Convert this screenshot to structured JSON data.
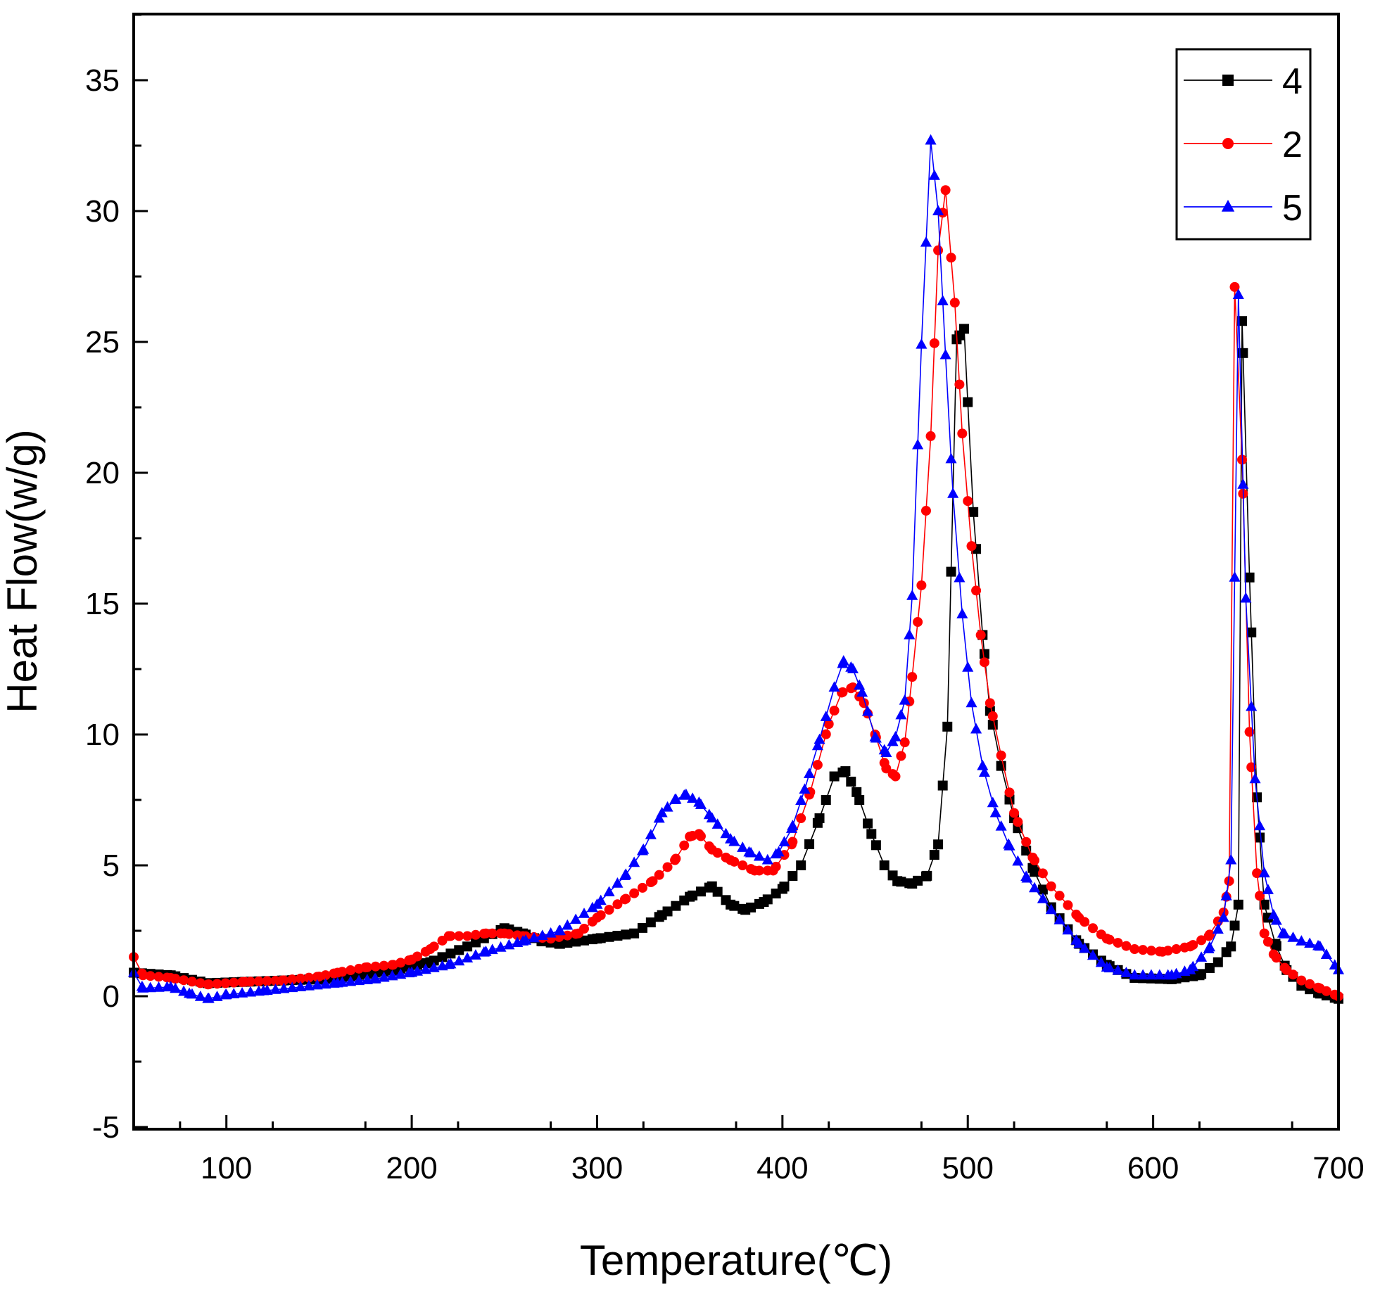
{
  "chart_data": {
    "type": "line",
    "title": "",
    "xlabel": "Temperature(℃)",
    "ylabel": "Heat Flow(w/g)",
    "xlim": [
      50,
      700
    ],
    "ylim": [
      -5,
      38
    ],
    "x_ticks": [
      100,
      200,
      300,
      400,
      500,
      600,
      700
    ],
    "x_tick_labels": [
      "100",
      "200",
      "300",
      "400",
      "500",
      "600",
      "700"
    ],
    "y_ticks": [
      -5,
      0,
      5,
      10,
      15,
      20,
      25,
      30,
      35
    ],
    "y_tick_labels": [
      "-5",
      "0",
      "5",
      "10",
      "15",
      "20",
      "25",
      "30",
      "35"
    ],
    "grid": false,
    "legend_position": "top-right",
    "series": [
      {
        "name": "4",
        "color": "#000000",
        "marker": "square",
        "points": [
          [
            50,
            0.9
          ],
          [
            70,
            0.8
          ],
          [
            90,
            0.5
          ],
          [
            110,
            0.55
          ],
          [
            130,
            0.6
          ],
          [
            150,
            0.65
          ],
          [
            170,
            0.8
          ],
          [
            190,
            1.0
          ],
          [
            210,
            1.3
          ],
          [
            230,
            1.9
          ],
          [
            250,
            2.6
          ],
          [
            260,
            2.4
          ],
          [
            270,
            2.1
          ],
          [
            280,
            2.0
          ],
          [
            300,
            2.2
          ],
          [
            320,
            2.4
          ],
          [
            335,
            3.1
          ],
          [
            350,
            3.8
          ],
          [
            362,
            4.2
          ],
          [
            372,
            3.5
          ],
          [
            380,
            3.3
          ],
          [
            390,
            3.6
          ],
          [
            400,
            4.1
          ],
          [
            410,
            5.0
          ],
          [
            420,
            6.8
          ],
          [
            428,
            8.4
          ],
          [
            434,
            8.6
          ],
          [
            440,
            7.8
          ],
          [
            448,
            6.2
          ],
          [
            455,
            5.0
          ],
          [
            462,
            4.4
          ],
          [
            470,
            4.3
          ],
          [
            478,
            4.6
          ],
          [
            484,
            5.8
          ],
          [
            489,
            10.3
          ],
          [
            494,
            25.1
          ],
          [
            498,
            25.5
          ],
          [
            503,
            18.5
          ],
          [
            508,
            13.8
          ],
          [
            512,
            10.9
          ],
          [
            518,
            8.8
          ],
          [
            525,
            6.8
          ],
          [
            535,
            4.9
          ],
          [
            545,
            3.4
          ],
          [
            560,
            2.0
          ],
          [
            575,
            1.2
          ],
          [
            590,
            0.7
          ],
          [
            610,
            0.65
          ],
          [
            625,
            0.8
          ],
          [
            635,
            1.3
          ],
          [
            642,
            1.9
          ],
          [
            646,
            3.5
          ],
          [
            648,
            25.8
          ],
          [
            652,
            16.0
          ],
          [
            656,
            7.6
          ],
          [
            660,
            3.5
          ],
          [
            666,
            2.0
          ],
          [
            672,
            1.0
          ],
          [
            680,
            0.4
          ],
          [
            690,
            0.1
          ],
          [
            700,
            -0.1
          ]
        ]
      },
      {
        "name": "2",
        "color": "#ff0000",
        "marker": "circle",
        "points": [
          [
            50,
            1.5
          ],
          [
            55,
            0.8
          ],
          [
            70,
            0.7
          ],
          [
            90,
            0.45
          ],
          [
            110,
            0.55
          ],
          [
            130,
            0.6
          ],
          [
            150,
            0.75
          ],
          [
            160,
            0.9
          ],
          [
            175,
            1.1
          ],
          [
            190,
            1.2
          ],
          [
            200,
            1.4
          ],
          [
            210,
            1.8
          ],
          [
            220,
            2.3
          ],
          [
            230,
            2.3
          ],
          [
            240,
            2.4
          ],
          [
            250,
            2.4
          ],
          [
            260,
            2.3
          ],
          [
            275,
            2.2
          ],
          [
            290,
            2.4
          ],
          [
            300,
            3.0
          ],
          [
            315,
            3.7
          ],
          [
            330,
            4.4
          ],
          [
            342,
            5.2
          ],
          [
            350,
            6.1
          ],
          [
            355,
            6.2
          ],
          [
            362,
            5.6
          ],
          [
            372,
            5.2
          ],
          [
            385,
            4.8
          ],
          [
            395,
            4.8
          ],
          [
            405,
            5.8
          ],
          [
            415,
            7.8
          ],
          [
            425,
            10.4
          ],
          [
            432,
            11.6
          ],
          [
            438,
            11.8
          ],
          [
            444,
            11.2
          ],
          [
            450,
            10.0
          ],
          [
            456,
            8.7
          ],
          [
            461,
            8.4
          ],
          [
            466,
            9.7
          ],
          [
            470,
            12.2
          ],
          [
            475,
            15.7
          ],
          [
            480,
            21.4
          ],
          [
            484,
            28.5
          ],
          [
            488,
            30.8
          ],
          [
            493,
            26.5
          ],
          [
            497,
            21.5
          ],
          [
            502,
            17.2
          ],
          [
            507,
            13.8
          ],
          [
            512,
            11.2
          ],
          [
            518,
            9.2
          ],
          [
            525,
            7.0
          ],
          [
            535,
            5.3
          ],
          [
            545,
            4.2
          ],
          [
            560,
            3.0
          ],
          [
            575,
            2.2
          ],
          [
            590,
            1.8
          ],
          [
            605,
            1.7
          ],
          [
            620,
            1.9
          ],
          [
            630,
            2.3
          ],
          [
            638,
            3.2
          ],
          [
            641,
            4.4
          ],
          [
            644,
            27.1
          ],
          [
            648,
            20.5
          ],
          [
            652,
            10.1
          ],
          [
            656,
            4.7
          ],
          [
            660,
            2.4
          ],
          [
            665,
            1.6
          ],
          [
            672,
            1.0
          ],
          [
            680,
            0.6
          ],
          [
            690,
            0.3
          ],
          [
            700,
            0.0
          ]
        ]
      },
      {
        "name": "5",
        "color": "#0000ff",
        "marker": "triangle",
        "points": [
          [
            50,
            0.9
          ],
          [
            55,
            0.3
          ],
          [
            70,
            0.35
          ],
          [
            80,
            0.1
          ],
          [
            90,
            -0.1
          ],
          [
            100,
            0.05
          ],
          [
            120,
            0.2
          ],
          [
            140,
            0.35
          ],
          [
            160,
            0.5
          ],
          [
            180,
            0.65
          ],
          [
            200,
            0.9
          ],
          [
            220,
            1.2
          ],
          [
            240,
            1.7
          ],
          [
            260,
            2.1
          ],
          [
            280,
            2.5
          ],
          [
            300,
            3.5
          ],
          [
            315,
            4.6
          ],
          [
            325,
            5.6
          ],
          [
            335,
            7.0
          ],
          [
            342,
            7.5
          ],
          [
            348,
            7.7
          ],
          [
            355,
            7.4
          ],
          [
            362,
            6.8
          ],
          [
            372,
            6.0
          ],
          [
            382,
            5.5
          ],
          [
            392,
            5.2
          ],
          [
            398,
            5.5
          ],
          [
            405,
            6.4
          ],
          [
            412,
            7.9
          ],
          [
            420,
            9.8
          ],
          [
            428,
            11.8
          ],
          [
            433,
            12.8
          ],
          [
            438,
            12.5
          ],
          [
            443,
            11.6
          ],
          [
            450,
            9.9
          ],
          [
            456,
            9.3
          ],
          [
            461,
            9.9
          ],
          [
            466,
            11.3
          ],
          [
            470,
            15.3
          ],
          [
            475,
            24.9
          ],
          [
            480,
            32.7
          ],
          [
            484,
            30.0
          ],
          [
            488,
            24.5
          ],
          [
            492,
            19.2
          ],
          [
            497,
            14.6
          ],
          [
            502,
            11.2
          ],
          [
            508,
            8.8
          ],
          [
            515,
            7.0
          ],
          [
            522,
            5.8
          ],
          [
            532,
            4.5
          ],
          [
            545,
            3.3
          ],
          [
            560,
            2.0
          ],
          [
            575,
            1.1
          ],
          [
            590,
            0.8
          ],
          [
            610,
            0.8
          ],
          [
            620,
            1.0
          ],
          [
            630,
            1.8
          ],
          [
            638,
            3.0
          ],
          [
            642,
            5.2
          ],
          [
            646,
            26.8
          ],
          [
            650,
            15.2
          ],
          [
            655,
            8.3
          ],
          [
            660,
            4.7
          ],
          [
            665,
            3.1
          ],
          [
            670,
            2.4
          ],
          [
            680,
            2.1
          ],
          [
            690,
            1.9
          ],
          [
            700,
            1.0
          ]
        ]
      }
    ]
  }
}
